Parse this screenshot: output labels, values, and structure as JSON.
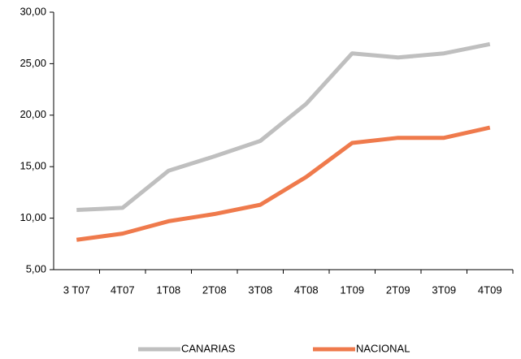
{
  "chart_data": {
    "type": "line",
    "categories": [
      "3 T07",
      "4T07",
      "1T08",
      "2T08",
      "3T08",
      "4T08",
      "1T09",
      "2T09",
      "3T09",
      "4T09"
    ],
    "series": [
      {
        "name": "CANARIAS",
        "color": "#bfbfbf",
        "values": [
          10.8,
          11.0,
          14.6,
          16.0,
          17.5,
          21.1,
          26.0,
          25.6,
          26.0,
          26.9
        ]
      },
      {
        "name": "NACIONAL",
        "color": "#ef7a4c",
        "values": [
          7.9,
          8.5,
          9.7,
          10.4,
          11.3,
          14.0,
          17.3,
          17.8,
          17.8,
          18.8
        ]
      }
    ],
    "ylim": [
      5,
      30
    ],
    "yticks": [
      {
        "value": 5,
        "label": "5,00"
      },
      {
        "value": 10,
        "label": "10,00"
      },
      {
        "value": 15,
        "label": "15,00"
      },
      {
        "value": 20,
        "label": "20,00"
      },
      {
        "value": 25,
        "label": "25,00"
      },
      {
        "value": 30,
        "label": "30,00"
      }
    ],
    "grid": false,
    "legend": "bottom"
  }
}
